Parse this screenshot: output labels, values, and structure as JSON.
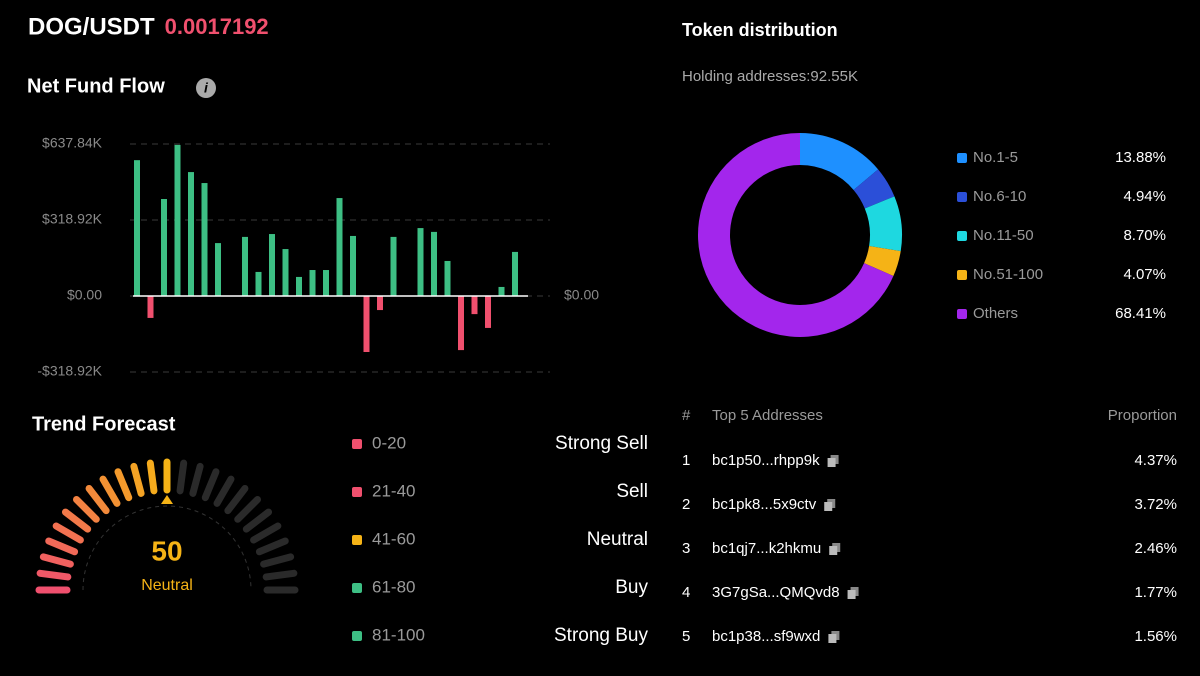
{
  "header": {
    "pair": "DOG/USDT",
    "price": "0.0017192"
  },
  "chart_data": [
    {
      "type": "bar",
      "title": "Net Fund Flow",
      "values": [
        570000,
        -92000,
        407000,
        634000,
        520000,
        474000,
        222000,
        0,
        248000,
        101000,
        260000,
        197000,
        80000,
        109000,
        109000,
        411000,
        252000,
        -235000,
        -59000,
        248000,
        0,
        285000,
        269000,
        147000,
        -227000,
        -76000,
        -134000,
        38000,
        185000
      ],
      "colors": {
        "positive": "#3dbf84",
        "negative": "#f0506e"
      },
      "ylim": [
        -318920,
        637840
      ],
      "yticks": [
        {
          "value": 637840,
          "label": "$637.84K"
        },
        {
          "value": 318920,
          "label": "$318.92K"
        },
        {
          "value": 0,
          "label": "$0.00"
        },
        {
          "value": -318920,
          "label": "-$318.92K"
        }
      ],
      "y2lim": [
        -318920,
        637840
      ],
      "y2ticks": [
        {
          "value": 0,
          "label": "$0.00"
        }
      ],
      "grid": true
    },
    {
      "type": "pie",
      "title": "Token distribution",
      "subtitle": "Holding addresses:92.55K",
      "categories": [
        "No.1-5",
        "No.6-10",
        "No.11-50",
        "No.51-100",
        "Others"
      ],
      "values": [
        13.88,
        4.94,
        8.7,
        4.07,
        68.41
      ],
      "value_labels": [
        "13.88%",
        "4.94%",
        "8.70%",
        "4.07%",
        "68.41%"
      ],
      "colors": [
        "#1e90ff",
        "#2b4fd8",
        "#1ed8e0",
        "#f5b316",
        "#a326ec"
      ]
    },
    {
      "type": "gauge",
      "title": "Trend Forecast",
      "value": 50,
      "value_text": "Neutral",
      "lim": [
        0,
        100
      ],
      "bands": [
        {
          "range": "0-20",
          "label": "Strong Sell",
          "color": "#f0506e"
        },
        {
          "range": "21-40",
          "label": "Sell",
          "color": "#f0506e"
        },
        {
          "range": "41-60",
          "label": "Neutral",
          "color": "#f5b316"
        },
        {
          "range": "61-80",
          "label": "Buy",
          "color": "#3dbf84"
        },
        {
          "range": "81-100",
          "label": "Strong Buy",
          "color": "#3dbf84"
        }
      ]
    }
  ],
  "table": {
    "columns": [
      "#",
      "Top 5 Addresses",
      "Proportion"
    ],
    "rows": [
      [
        "1",
        "bc1p50...rhpp9k",
        "4.37%"
      ],
      [
        "2",
        "bc1pk8...5x9ctv",
        "3.72%"
      ],
      [
        "3",
        "bc1qj7...k2hkmu",
        "2.46%"
      ],
      [
        "4",
        "3G7gSa...QMQvd8",
        "1.77%"
      ],
      [
        "5",
        "bc1p38...sf9wxd",
        "1.56%"
      ]
    ]
  }
}
